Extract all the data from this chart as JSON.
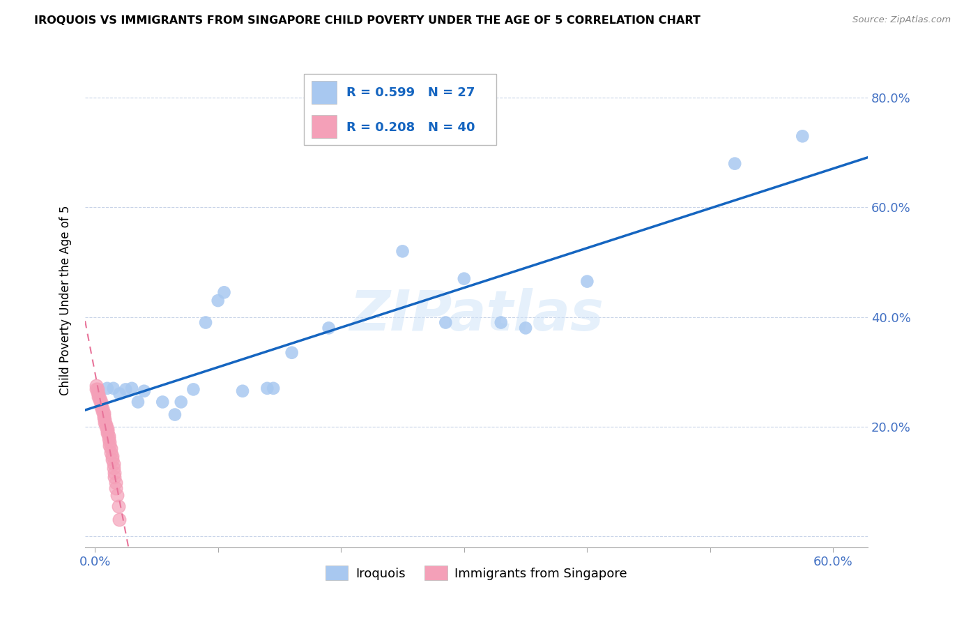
{
  "title": "IROQUOIS VS IMMIGRANTS FROM SINGAPORE CHILD POVERTY UNDER THE AGE OF 5 CORRELATION CHART",
  "source": "Source: ZipAtlas.com",
  "ylabel": "Child Poverty Under the Age of 5",
  "iroquois_R": 0.599,
  "iroquois_N": 27,
  "singapore_R": 0.208,
  "singapore_N": 40,
  "iroquois_color": "#A8C8F0",
  "singapore_color": "#F4A0B8",
  "iroquois_line_color": "#1565C0",
  "singapore_line_color": "#E8749A",
  "tick_color": "#4472C4",
  "legend_label_1": "Iroquois",
  "legend_label_2": "Immigrants from Singapore",
  "watermark": "ZIPatlas",
  "iroquois_points": [
    [
      0.01,
      0.27
    ],
    [
      0.015,
      0.27
    ],
    [
      0.02,
      0.26
    ],
    [
      0.025,
      0.268
    ],
    [
      0.03,
      0.27
    ],
    [
      0.035,
      0.245
    ],
    [
      0.04,
      0.265
    ],
    [
      0.055,
      0.245
    ],
    [
      0.065,
      0.222
    ],
    [
      0.07,
      0.245
    ],
    [
      0.08,
      0.268
    ],
    [
      0.09,
      0.39
    ],
    [
      0.1,
      0.43
    ],
    [
      0.105,
      0.445
    ],
    [
      0.12,
      0.265
    ],
    [
      0.14,
      0.27
    ],
    [
      0.145,
      0.27
    ],
    [
      0.16,
      0.335
    ],
    [
      0.19,
      0.38
    ],
    [
      0.25,
      0.52
    ],
    [
      0.285,
      0.39
    ],
    [
      0.3,
      0.47
    ],
    [
      0.33,
      0.39
    ],
    [
      0.35,
      0.38
    ],
    [
      0.4,
      0.465
    ],
    [
      0.52,
      0.68
    ],
    [
      0.575,
      0.73
    ]
  ],
  "singapore_points": [
    [
      0.001,
      0.275
    ],
    [
      0.001,
      0.268
    ],
    [
      0.002,
      0.268
    ],
    [
      0.002,
      0.262
    ],
    [
      0.003,
      0.26
    ],
    [
      0.003,
      0.255
    ],
    [
      0.004,
      0.252
    ],
    [
      0.004,
      0.248
    ],
    [
      0.005,
      0.245
    ],
    [
      0.005,
      0.24
    ],
    [
      0.005,
      0.236
    ],
    [
      0.006,
      0.233
    ],
    [
      0.006,
      0.228
    ],
    [
      0.007,
      0.225
    ],
    [
      0.007,
      0.22
    ],
    [
      0.007,
      0.216
    ],
    [
      0.008,
      0.212
    ],
    [
      0.008,
      0.208
    ],
    [
      0.009,
      0.204
    ],
    [
      0.009,
      0.2
    ],
    [
      0.01,
      0.196
    ],
    [
      0.01,
      0.192
    ],
    [
      0.01,
      0.188
    ],
    [
      0.011,
      0.183
    ],
    [
      0.011,
      0.178
    ],
    [
      0.012,
      0.172
    ],
    [
      0.012,
      0.166
    ],
    [
      0.013,
      0.16
    ],
    [
      0.013,
      0.153
    ],
    [
      0.014,
      0.147
    ],
    [
      0.014,
      0.14
    ],
    [
      0.015,
      0.132
    ],
    [
      0.015,
      0.125
    ],
    [
      0.016,
      0.116
    ],
    [
      0.016,
      0.108
    ],
    [
      0.017,
      0.098
    ],
    [
      0.017,
      0.088
    ],
    [
      0.018,
      0.075
    ],
    [
      0.019,
      0.055
    ],
    [
      0.02,
      0.03
    ]
  ],
  "xlim": [
    -0.008,
    0.628
  ],
  "ylim": [
    -0.02,
    0.88
  ],
  "x_tick_positions": [
    0.0,
    0.1,
    0.2,
    0.3,
    0.4,
    0.5,
    0.6
  ],
  "x_tick_labels": [
    "0.0%",
    "",
    "",
    "",
    "",
    "",
    "60.0%"
  ],
  "y_tick_positions": [
    0.0,
    0.2,
    0.4,
    0.6,
    0.8
  ],
  "y_tick_labels_right": [
    "",
    "20.0%",
    "40.0%",
    "60.0%",
    "80.0%"
  ]
}
